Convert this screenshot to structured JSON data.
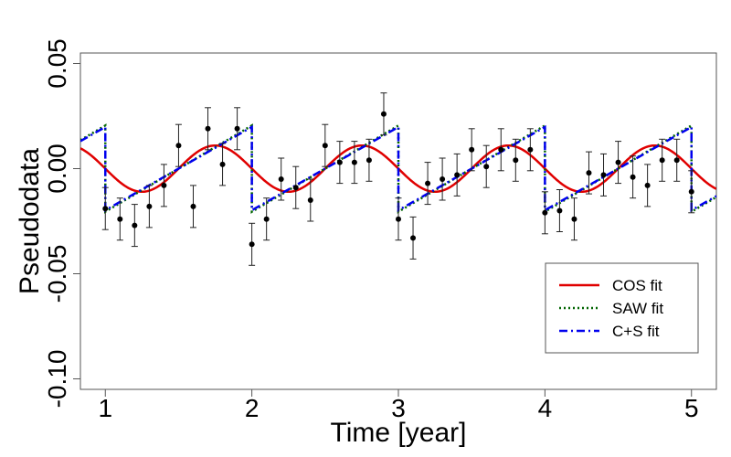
{
  "chart_data": {
    "type": "scatter",
    "xlabel": "Time [year]",
    "ylabel": "Pseudodata",
    "xlim": [
      0.83,
      5.17
    ],
    "ylim": [
      -0.105,
      0.055
    ],
    "x_ticks": [
      1,
      2,
      3,
      4,
      5
    ],
    "y_ticks": [
      -0.1,
      -0.05,
      0.0,
      0.05
    ],
    "y_tick_labels": [
      "-0.10",
      "-0.05",
      "0.00",
      "0.05"
    ],
    "x_tick_labels": [
      "1",
      "2",
      "3",
      "4",
      "5"
    ],
    "legend": {
      "position": "bottom-right",
      "entries": [
        {
          "label": "COS fit",
          "color": "#e00000",
          "style": "solid"
        },
        {
          "label": "SAW fit",
          "color": "#006400",
          "style": "dotted"
        },
        {
          "label": "C+S fit",
          "color": "#0000ee",
          "style": "dashed"
        }
      ]
    },
    "fits": {
      "cos": {
        "amplitude": 0.011,
        "period": 1.0,
        "peak_phase": 0.75
      },
      "saw": {
        "amplitude": 0.0205,
        "period": 1.0,
        "reset_phase": 0.0
      },
      "c_plus_s": {
        "amplitude": 0.0198,
        "period": 1.0,
        "reset_phase": 0.0
      }
    },
    "points": [
      {
        "x": 1.0,
        "y": -0.019,
        "err": 0.01
      },
      {
        "x": 1.1,
        "y": -0.024,
        "err": 0.01
      },
      {
        "x": 1.2,
        "y": -0.027,
        "err": 0.01
      },
      {
        "x": 1.3,
        "y": -0.018,
        "err": 0.01
      },
      {
        "x": 1.4,
        "y": -0.008,
        "err": 0.01
      },
      {
        "x": 1.5,
        "y": 0.011,
        "err": 0.01
      },
      {
        "x": 1.6,
        "y": -0.018,
        "err": 0.01
      },
      {
        "x": 1.7,
        "y": 0.019,
        "err": 0.01
      },
      {
        "x": 1.8,
        "y": 0.002,
        "err": 0.01
      },
      {
        "x": 1.9,
        "y": 0.019,
        "err": 0.01
      },
      {
        "x": 2.0,
        "y": -0.036,
        "err": 0.01
      },
      {
        "x": 2.1,
        "y": -0.024,
        "err": 0.01
      },
      {
        "x": 2.2,
        "y": -0.005,
        "err": 0.01
      },
      {
        "x": 2.3,
        "y": -0.009,
        "err": 0.01
      },
      {
        "x": 2.4,
        "y": -0.015,
        "err": 0.01
      },
      {
        "x": 2.5,
        "y": 0.011,
        "err": 0.01
      },
      {
        "x": 2.6,
        "y": 0.003,
        "err": 0.01
      },
      {
        "x": 2.7,
        "y": 0.003,
        "err": 0.01
      },
      {
        "x": 2.8,
        "y": 0.004,
        "err": 0.01
      },
      {
        "x": 2.9,
        "y": 0.026,
        "err": 0.01
      },
      {
        "x": 3.0,
        "y": -0.024,
        "err": 0.01
      },
      {
        "x": 3.1,
        "y": -0.033,
        "err": 0.01
      },
      {
        "x": 3.2,
        "y": -0.007,
        "err": 0.01
      },
      {
        "x": 3.3,
        "y": -0.005,
        "err": 0.01
      },
      {
        "x": 3.4,
        "y": -0.003,
        "err": 0.01
      },
      {
        "x": 3.5,
        "y": 0.009,
        "err": 0.01
      },
      {
        "x": 3.6,
        "y": 0.001,
        "err": 0.01
      },
      {
        "x": 3.7,
        "y": 0.009,
        "err": 0.01
      },
      {
        "x": 3.8,
        "y": 0.004,
        "err": 0.01
      },
      {
        "x": 3.9,
        "y": 0.009,
        "err": 0.01
      },
      {
        "x": 4.0,
        "y": -0.021,
        "err": 0.01
      },
      {
        "x": 4.1,
        "y": -0.02,
        "err": 0.01
      },
      {
        "x": 4.2,
        "y": -0.024,
        "err": 0.01
      },
      {
        "x": 4.3,
        "y": -0.002,
        "err": 0.01
      },
      {
        "x": 4.4,
        "y": -0.003,
        "err": 0.01
      },
      {
        "x": 4.5,
        "y": 0.003,
        "err": 0.01
      },
      {
        "x": 4.6,
        "y": -0.004,
        "err": 0.01
      },
      {
        "x": 4.7,
        "y": -0.008,
        "err": 0.01
      },
      {
        "x": 4.8,
        "y": 0.004,
        "err": 0.01
      },
      {
        "x": 4.9,
        "y": 0.004,
        "err": 0.01
      },
      {
        "x": 5.0,
        "y": -0.011,
        "err": 0.01
      }
    ]
  }
}
